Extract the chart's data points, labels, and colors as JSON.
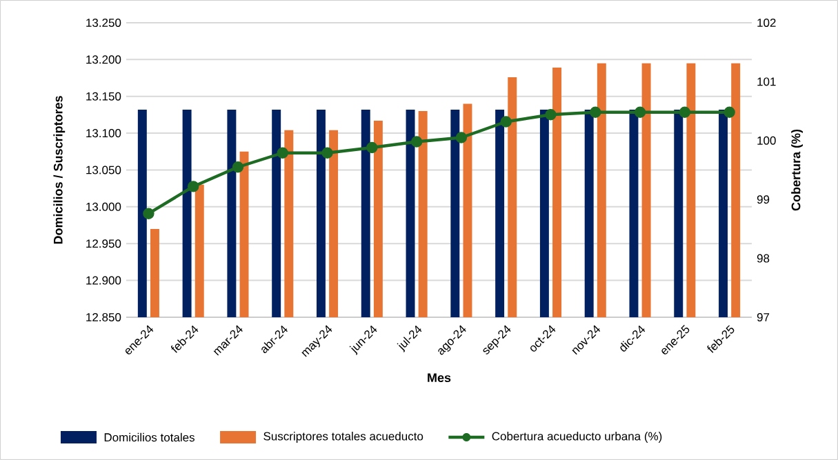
{
  "chart_data": {
    "type": "bar",
    "categories": [
      "ene-24",
      "feb-24",
      "mar-24",
      "abr-24",
      "may-24",
      "jun-24",
      "jul-24",
      "ago-24",
      "sep-24",
      "oct-24",
      "nov-24",
      "dic-24",
      "ene-25",
      "feb-25"
    ],
    "series": [
      {
        "name": "Domicilios totales",
        "color": "#002060",
        "values": [
          13132,
          13132,
          13132,
          13132,
          13132,
          13132,
          13132,
          13132,
          13132,
          13132,
          13132,
          13132,
          13132,
          13132
        ]
      },
      {
        "name": "Suscriptores totales acueducto",
        "color": "#e87433",
        "values": [
          12970,
          13030,
          13075,
          13104,
          13104,
          13117,
          13130,
          13140,
          13176,
          13189,
          13195,
          13195,
          13195,
          13195
        ]
      },
      {
        "name": "Cobertura acueducto urbana (%)",
        "type": "line",
        "axis": "y2",
        "color": "#1e6b24",
        "values": [
          98.76,
          99.22,
          99.55,
          99.79,
          99.79,
          99.88,
          99.98,
          100.05,
          100.32,
          100.44,
          100.48,
          100.48,
          100.48,
          100.48
        ]
      }
    ],
    "xlabel": "Mes",
    "ylabel": "Domicilios / Suscriptores",
    "y2label": "Cobertura (%)",
    "ylim": [
      12850,
      13250
    ],
    "yticks": [
      {
        "value": 12850,
        "label": "12.850"
      },
      {
        "value": 12900,
        "label": "12.900"
      },
      {
        "value": 12950,
        "label": "12.950"
      },
      {
        "value": 13000,
        "label": "13.000"
      },
      {
        "value": 13050,
        "label": "13.050"
      },
      {
        "value": 13100,
        "label": "13.100"
      },
      {
        "value": 13150,
        "label": "13.150"
      },
      {
        "value": 13200,
        "label": "13.200"
      },
      {
        "value": 13250,
        "label": "13.250"
      }
    ],
    "y2lim": [
      97,
      102
    ],
    "y2ticks": [
      97,
      98,
      99,
      100,
      101,
      102
    ],
    "grid": "y",
    "legend": "bottom",
    "marker": "circle",
    "line_style": "solid"
  }
}
